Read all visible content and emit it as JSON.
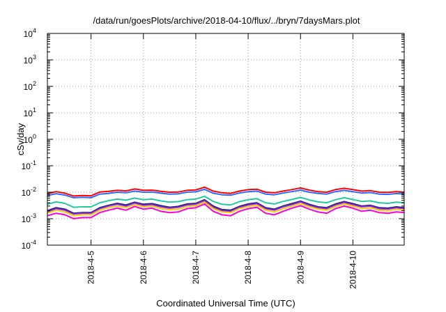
{
  "chart_data": {
    "type": "line",
    "title": "/data/run/goesPlots/archive/2018-04-10/flux/../bryn/7daysMars.plot",
    "xlabel": "Coordinated Universal Time (UTC)",
    "ylabel": "cSv/day",
    "yscale": "log",
    "ylim": [
      0.0001,
      10000
    ],
    "xlim": [
      "2018-04-04T04:00",
      "2018-04-10T23:30"
    ],
    "grid": true,
    "legend": "none",
    "y_ticks": [
      {
        "base": "10",
        "exp": "-4",
        "value": 0.0001
      },
      {
        "base": "10",
        "exp": "-3",
        "value": 0.001
      },
      {
        "base": "10",
        "exp": "-2",
        "value": 0.01
      },
      {
        "base": "10",
        "exp": "-1",
        "value": 0.1
      },
      {
        "base": "10",
        "exp": "0",
        "value": 1
      },
      {
        "base": "10",
        "exp": "1",
        "value": 10
      },
      {
        "base": "10",
        "exp": "2",
        "value": 100
      },
      {
        "base": "10",
        "exp": "3",
        "value": 1000
      },
      {
        "base": "10",
        "exp": "4",
        "value": 10000
      }
    ],
    "x_ticks": [
      "2018-4-5",
      "2018-4-6",
      "2018-4-7",
      "2018-4-8",
      "2018-4-9",
      "2018-4-10"
    ],
    "x_tick_dates": [
      "2018-04-05",
      "2018-04-06",
      "2018-04-07",
      "2018-04-08",
      "2018-04-09",
      "2018-04-10"
    ],
    "series_colors": [
      "#ff0000",
      "#2a6cff",
      "#22c9a0",
      "#222266",
      "#8a2be2",
      "#ffcc00",
      "#ff00cc"
    ],
    "x_times": [
      "2018-04-04T04:00",
      "2018-04-04T08:00",
      "2018-04-04T12:00",
      "2018-04-04T16:00",
      "2018-04-04T20:00",
      "2018-04-05T00:00",
      "2018-04-05T04:00",
      "2018-04-05T08:00",
      "2018-04-05T12:00",
      "2018-04-05T16:00",
      "2018-04-05T20:00",
      "2018-04-06T00:00",
      "2018-04-06T04:00",
      "2018-04-06T08:00",
      "2018-04-06T12:00",
      "2018-04-06T16:00",
      "2018-04-06T20:00",
      "2018-04-07T00:00",
      "2018-04-07T04:00",
      "2018-04-07T08:00",
      "2018-04-07T12:00",
      "2018-04-07T16:00",
      "2018-04-07T20:00",
      "2018-04-08T00:00",
      "2018-04-08T04:00",
      "2018-04-08T08:00",
      "2018-04-08T12:00",
      "2018-04-08T16:00",
      "2018-04-08T20:00",
      "2018-04-09T00:00",
      "2018-04-09T04:00",
      "2018-04-09T08:00",
      "2018-04-09T12:00",
      "2018-04-09T16:00",
      "2018-04-09T20:00",
      "2018-04-10T00:00",
      "2018-04-10T04:00",
      "2018-04-10T08:00",
      "2018-04-10T12:00",
      "2018-04-10T16:00",
      "2018-04-10T20:00",
      "2018-04-10T23:30"
    ],
    "series": [
      {
        "color": "#ff0000",
        "values": [
          0.0088,
          0.0105,
          0.0092,
          0.0072,
          0.0075,
          0.0073,
          0.0102,
          0.0108,
          0.0118,
          0.0112,
          0.0132,
          0.0118,
          0.012,
          0.0108,
          0.01,
          0.0102,
          0.0118,
          0.0122,
          0.0155,
          0.011,
          0.0095,
          0.009,
          0.011,
          0.0125,
          0.013,
          0.01,
          0.0095,
          0.011,
          0.0125,
          0.0145,
          0.012,
          0.0105,
          0.01,
          0.0125,
          0.014,
          0.0125,
          0.011,
          0.0115,
          0.01,
          0.0098,
          0.0105,
          0.01
        ]
      },
      {
        "color": "#2a6cff",
        "values": [
          0.0075,
          0.0088,
          0.0078,
          0.0062,
          0.0064,
          0.0062,
          0.0085,
          0.009,
          0.01,
          0.0095,
          0.011,
          0.01,
          0.0102,
          0.0092,
          0.0085,
          0.0087,
          0.01,
          0.0104,
          0.0128,
          0.0092,
          0.008,
          0.0077,
          0.0093,
          0.0105,
          0.011,
          0.0085,
          0.008,
          0.0093,
          0.0105,
          0.012,
          0.01,
          0.009,
          0.0085,
          0.0105,
          0.0117,
          0.0105,
          0.0093,
          0.0097,
          0.0085,
          0.0083,
          0.0089,
          0.0085
        ]
      },
      {
        "color": "#22c9a0",
        "values": [
          0.0035,
          0.0043,
          0.0038,
          0.0027,
          0.0028,
          0.0028,
          0.004,
          0.0048,
          0.0055,
          0.005,
          0.006,
          0.0052,
          0.0055,
          0.0047,
          0.0042,
          0.0044,
          0.0052,
          0.0055,
          0.007,
          0.0045,
          0.0035,
          0.0033,
          0.0044,
          0.0052,
          0.0057,
          0.004,
          0.0036,
          0.0045,
          0.0053,
          0.0064,
          0.0051,
          0.0043,
          0.004,
          0.0052,
          0.0062,
          0.0053,
          0.0045,
          0.0047,
          0.004,
          0.0038,
          0.0042,
          0.004
        ]
      },
      {
        "color": "#222266",
        "values": [
          0.002,
          0.0026,
          0.0023,
          0.0016,
          0.0017,
          0.0017,
          0.0026,
          0.0032,
          0.0038,
          0.0033,
          0.0042,
          0.0035,
          0.0037,
          0.0031,
          0.0027,
          0.0029,
          0.0036,
          0.0038,
          0.0052,
          0.003,
          0.0022,
          0.0021,
          0.0029,
          0.0036,
          0.004,
          0.0026,
          0.0023,
          0.003,
          0.0037,
          0.0046,
          0.0035,
          0.0028,
          0.0026,
          0.0036,
          0.0044,
          0.0037,
          0.003,
          0.0032,
          0.0026,
          0.0025,
          0.0028,
          0.0026
        ]
      },
      {
        "color": "#8a2be2",
        "values": [
          0.0018,
          0.0024,
          0.0021,
          0.0015,
          0.0016,
          0.0016,
          0.0024,
          0.003,
          0.0035,
          0.003,
          0.0039,
          0.0032,
          0.0034,
          0.0028,
          0.0025,
          0.0027,
          0.0033,
          0.0035,
          0.0048,
          0.0027,
          0.002,
          0.0019,
          0.0027,
          0.0033,
          0.0037,
          0.0024,
          0.0021,
          0.0028,
          0.0034,
          0.0043,
          0.0032,
          0.0026,
          0.0024,
          0.0033,
          0.0041,
          0.0034,
          0.0028,
          0.003,
          0.0024,
          0.0023,
          0.0026,
          0.0024
        ]
      },
      {
        "color": "#ffcc00",
        "values": [
          0.0016,
          0.0021,
          0.0018,
          0.0013,
          0.0014,
          0.0014,
          0.0021,
          0.0026,
          0.003,
          0.0026,
          0.0034,
          0.0028,
          0.003,
          0.0024,
          0.0022,
          0.0023,
          0.0029,
          0.0031,
          0.0042,
          0.0024,
          0.0018,
          0.0017,
          0.0024,
          0.0029,
          0.0032,
          0.0021,
          0.0018,
          0.0024,
          0.003,
          0.0037,
          0.0028,
          0.0023,
          0.0021,
          0.0029,
          0.0036,
          0.003,
          0.0024,
          0.0026,
          0.0021,
          0.002,
          0.0023,
          0.0021
        ]
      },
      {
        "color": "#ff00cc",
        "values": [
          0.0013,
          0.0016,
          0.0014,
          0.001,
          0.0011,
          0.0011,
          0.0017,
          0.0021,
          0.0025,
          0.0021,
          0.0029,
          0.0023,
          0.0025,
          0.0019,
          0.0017,
          0.0018,
          0.0024,
          0.0026,
          0.0036,
          0.0019,
          0.0014,
          0.0013,
          0.0019,
          0.0024,
          0.0027,
          0.0016,
          0.0014,
          0.0019,
          0.0025,
          0.0031,
          0.0023,
          0.0018,
          0.0016,
          0.0024,
          0.003,
          0.0025,
          0.0019,
          0.0021,
          0.0017,
          0.0016,
          0.0018,
          0.0017
        ]
      }
    ]
  }
}
